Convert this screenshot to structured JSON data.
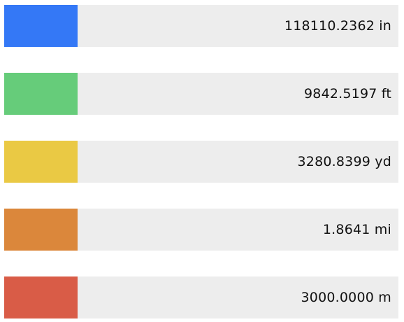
{
  "conversions": [
    {
      "value": "118110.2362 in",
      "color": "#3478f6"
    },
    {
      "value": "9842.5197 ft",
      "color": "#66cc7a"
    },
    {
      "value": "3280.8399 yd",
      "color": "#eac944"
    },
    {
      "value": "1.8641 mi",
      "color": "#db873b"
    },
    {
      "value": "3000.0000 m",
      "color": "#d95c47"
    }
  ]
}
